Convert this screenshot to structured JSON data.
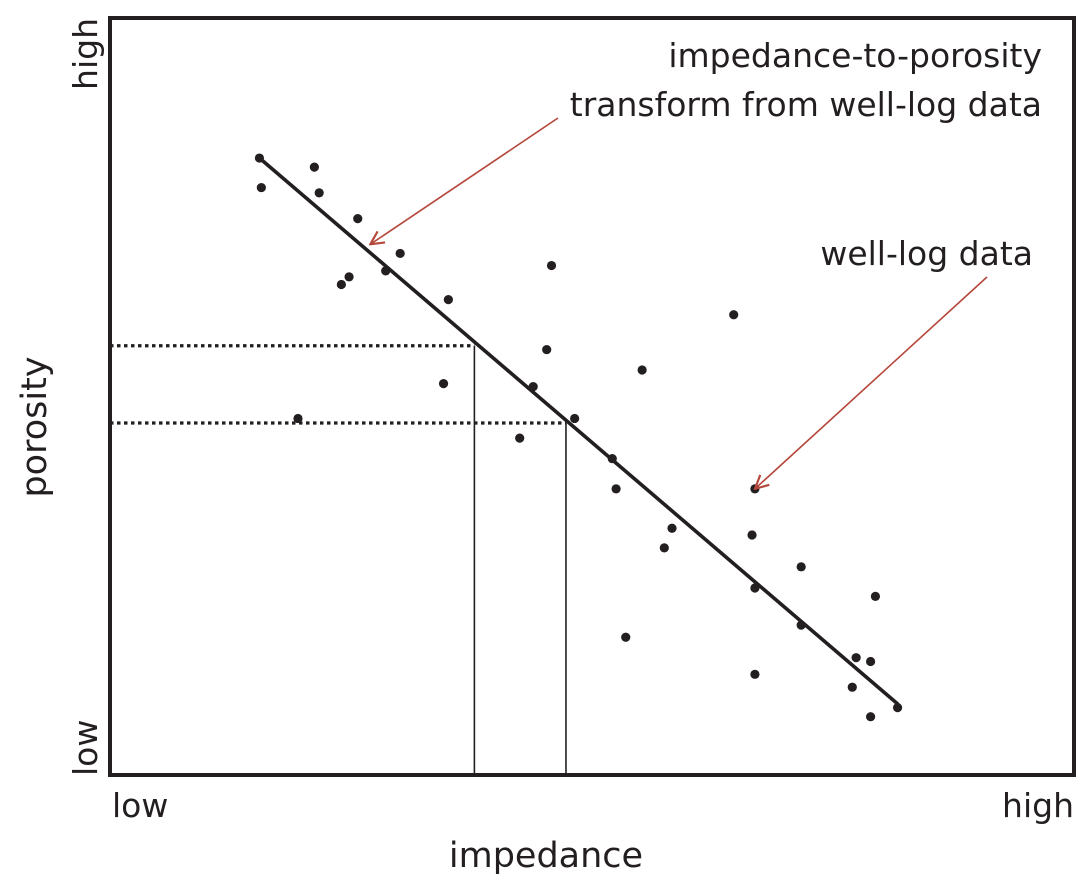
{
  "chart_data": {
    "type": "scatter",
    "title": "",
    "xlabel": "impedance",
    "ylabel": "porosity",
    "x_tick_labels": {
      "min": "low",
      "max": "high"
    },
    "y_tick_labels": {
      "min": "low",
      "max": "high"
    },
    "xlim": [
      0,
      100
    ],
    "ylim": [
      0,
      100
    ],
    "grid": false,
    "colors": {
      "ink": "#231f20",
      "annotation": "#b5463a"
    },
    "annotations": [
      {
        "id": "transform",
        "lines": [
          "impedance-to-porosity",
          "transform from well-log data"
        ],
        "points_to": [
          27.0,
          70.1
        ]
      },
      {
        "id": "welllog",
        "lines": [
          "well-log data"
        ],
        "points_to": [
          66.9,
          37.8
        ]
      }
    ],
    "trend_line": {
      "name": "impedance-to-porosity transform",
      "x": [
        15.5,
        81.7
      ],
      "y": [
        81.5,
        9.4
      ]
    },
    "readouts": [
      {
        "x": 37.8,
        "y": 56.7
      },
      {
        "x": 47.3,
        "y": 46.5
      }
    ],
    "series": [
      {
        "name": "well-log data",
        "x": [
          15.5,
          15.7,
          21.2,
          21.7,
          25.7,
          24.8,
          30.1,
          28.6,
          24.0,
          35.1,
          45.8,
          45.3,
          34.6,
          19.5,
          43.9,
          42.5,
          48.2,
          55.2,
          52.1,
          64.7,
          58.3,
          52.5,
          57.5,
          66.9,
          66.6,
          66.9,
          71.7,
          71.7,
          66.9,
          53.5,
          79.4,
          77.4,
          78.9,
          77.0,
          78.9,
          81.7
        ],
        "y": [
          81.5,
          77.6,
          80.3,
          76.9,
          73.5,
          65.8,
          68.9,
          66.6,
          64.8,
          62.8,
          67.3,
          56.2,
          51.7,
          47.1,
          51.3,
          44.5,
          47.1,
          53.5,
          41.8,
          60.8,
          32.6,
          37.8,
          30.0,
          37.8,
          31.7,
          24.7,
          27.5,
          19.8,
          13.3,
          18.2,
          23.6,
          15.5,
          15.0,
          11.6,
          7.7,
          8.9
        ]
      }
    ]
  }
}
